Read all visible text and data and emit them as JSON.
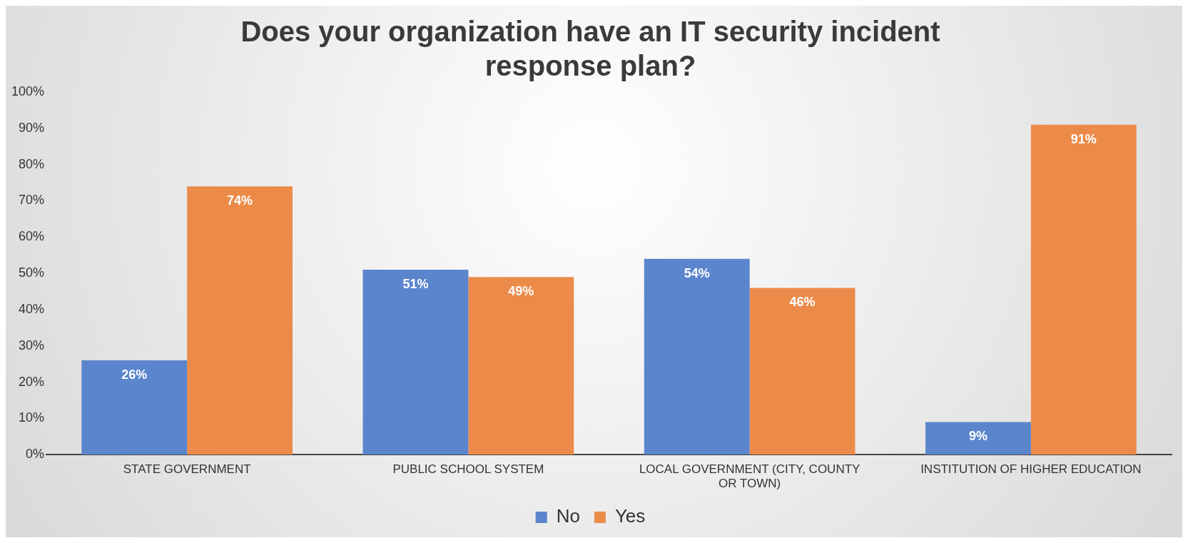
{
  "chart_data": {
    "type": "bar",
    "title": "Does your organization have an IT security incident response plan?",
    "categories": [
      "STATE GOVERNMENT",
      "PUBLIC SCHOOL SYSTEM",
      "LOCAL GOVERNMENT (CITY, COUNTY OR TOWN)",
      "INSTITUTION OF HIGHER EDUCATION"
    ],
    "series": [
      {
        "name": "No",
        "color": "#5b85cc",
        "values": [
          26,
          51,
          54,
          9
        ],
        "value_labels": [
          "26%",
          "51%",
          "54%",
          "9%"
        ]
      },
      {
        "name": "Yes",
        "color": "#ec8b49",
        "values": [
          74,
          49,
          46,
          91
        ],
        "value_labels": [
          "74%",
          "49%",
          "46%",
          "91%"
        ]
      }
    ],
    "ylim": [
      0,
      100
    ],
    "yticks": [
      {
        "value": 0,
        "label": "0%"
      },
      {
        "value": 10,
        "label": "10%"
      },
      {
        "value": 20,
        "label": "20%"
      },
      {
        "value": 30,
        "label": "30%"
      },
      {
        "value": 40,
        "label": "40%"
      },
      {
        "value": 50,
        "label": "50%"
      },
      {
        "value": 60,
        "label": "60%"
      },
      {
        "value": 70,
        "label": "70%"
      },
      {
        "value": 80,
        "label": "80%"
      },
      {
        "value": 90,
        "label": "90%"
      },
      {
        "value": 100,
        "label": "100%"
      }
    ],
    "grid": false,
    "legend": "bottom"
  }
}
